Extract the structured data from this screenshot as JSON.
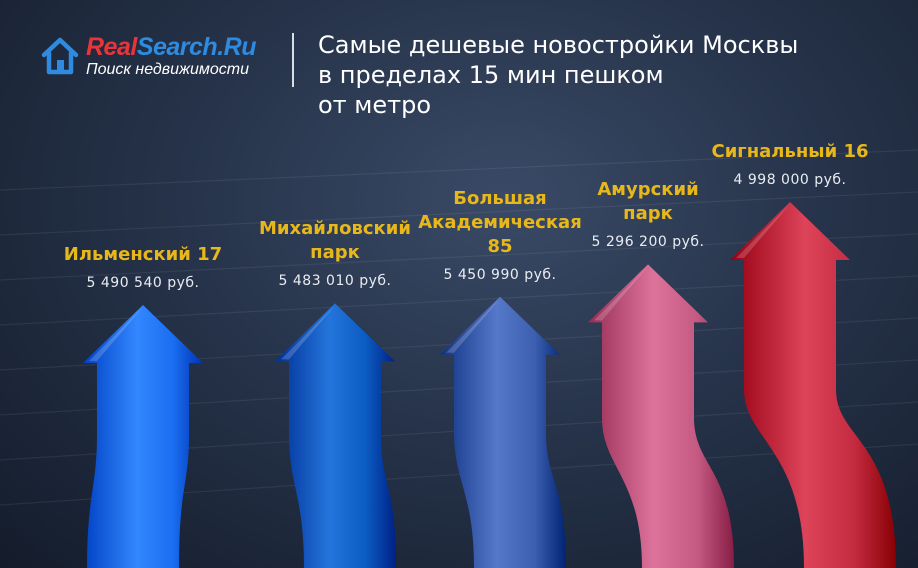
{
  "logo": {
    "name_part1": "Real",
    "name_part2": "Search.Ru",
    "tagline": "Поиск недвижимости",
    "icon": "house-icon"
  },
  "title_lines": [
    "Самые дешевые новостройки Москвы",
    "в пределах 15 мин пешком",
    "от метро"
  ],
  "chart_data": {
    "type": "bar",
    "categories": [
      "Ильменский 17",
      "Михайловский парк",
      "Большая Академическая 85",
      "Амурский парк",
      "Сигнальный 16"
    ],
    "category_lines": [
      [
        "Ильменский 17"
      ],
      [
        "Михайловский",
        "парк"
      ],
      [
        "Большая",
        "Академическая",
        "85"
      ],
      [
        "Амурский",
        "парк"
      ],
      [
        "Сигнальный 16"
      ]
    ],
    "values": [
      5490540,
      5483010,
      5450990,
      5296200,
      4998000
    ],
    "value_labels": [
      "5 490 540 руб.",
      "5 483 010 руб.",
      "5 450 990 руб.",
      "5 296 200 руб.",
      "4 998 000 руб."
    ],
    "colors": [
      "#1a6ef0",
      "#0b5cc2",
      "#3d5fb0",
      "#c45a82",
      "#c42a40"
    ],
    "label_color": "#e8b81a"
  }
}
